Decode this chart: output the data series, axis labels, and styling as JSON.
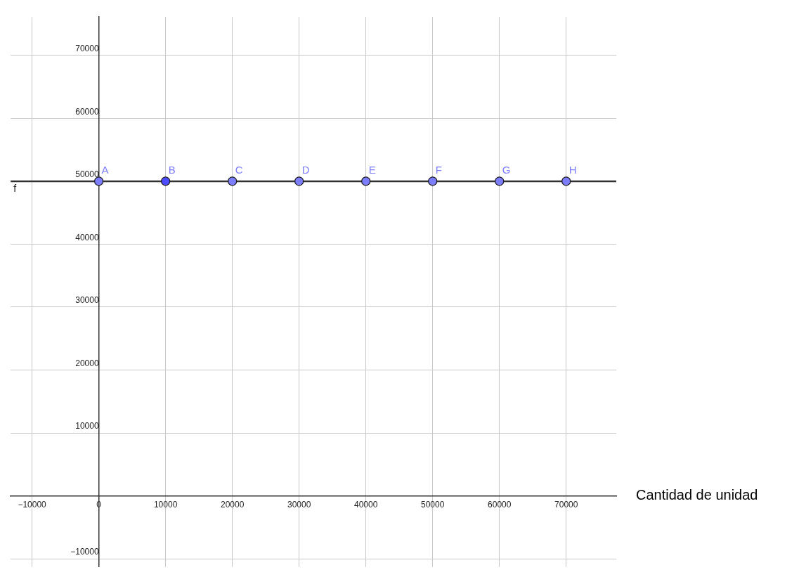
{
  "chart_data": {
    "type": "scatter",
    "xlabel": "Cantidad de unidad",
    "xlim": [
      -13200,
      77500
    ],
    "ylim": [
      -11300,
      76100
    ],
    "xticks": [
      {
        "value": -10000,
        "label": "−10000"
      },
      0,
      10000,
      20000,
      30000,
      40000,
      50000,
      60000,
      70000
    ],
    "yticks": [
      {
        "value": -10000,
        "label": "−10000"
      },
      {
        "value": 0,
        "label": null
      },
      10000,
      20000,
      30000,
      40000,
      50000,
      60000,
      70000
    ],
    "grid": true,
    "marker": "circle",
    "x": [
      0,
      10000,
      20000,
      30000,
      40000,
      50000,
      60000,
      70000
    ],
    "values": [
      50000,
      50000,
      50000,
      50000,
      50000,
      50000,
      50000,
      50000
    ],
    "colors": [
      "#7d7dff",
      "#4d4dff",
      "#7d7dff",
      "#7d7dff",
      "#7d7dff",
      "#7d7dff",
      "#7d7dff",
      "#7d7dff"
    ],
    "ref_lines": [
      {
        "axis": "y",
        "value": 50000,
        "label": "f",
        "color": "#333333"
      }
    ],
    "annotations": [
      {
        "text": "A",
        "x": 0,
        "y": 50000
      },
      {
        "text": "B",
        "x": 10000,
        "y": 50000
      },
      {
        "text": "C",
        "x": 20000,
        "y": 50000
      },
      {
        "text": "D",
        "x": 30000,
        "y": 50000
      },
      {
        "text": "E",
        "x": 40000,
        "y": 50000
      },
      {
        "text": "F",
        "x": 50000,
        "y": 50000
      },
      {
        "text": "G",
        "x": 60000,
        "y": 50000
      },
      {
        "text": "H",
        "x": 70000,
        "y": 50000
      }
    ]
  }
}
